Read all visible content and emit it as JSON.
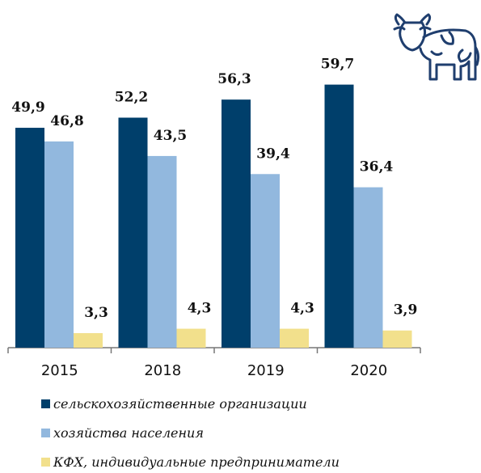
{
  "chart_data": {
    "type": "bar",
    "categories": [
      "2015",
      "2018",
      "2019",
      "2020"
    ],
    "series": [
      {
        "name": "сельскохозяйственные организации",
        "color": "#003f6b",
        "values": [
          49.9,
          52.2,
          56.3,
          59.7
        ],
        "value_labels": [
          "49,9",
          "52,2",
          "56,3",
          "59,7"
        ]
      },
      {
        "name": "хозяйства населения",
        "color": "#92b8de",
        "values": [
          46.8,
          43.5,
          39.4,
          36.4
        ],
        "value_labels": [
          "46,8",
          "43,5",
          "39,4",
          "36,4"
        ]
      },
      {
        "name": "КФХ, индивидуальные предприниматели",
        "color": "#f2e08c",
        "values": [
          3.3,
          4.3,
          4.3,
          3.9
        ],
        "value_labels": [
          "3,3",
          "4,3",
          "4,3",
          "3,9"
        ]
      }
    ]
  }
}
